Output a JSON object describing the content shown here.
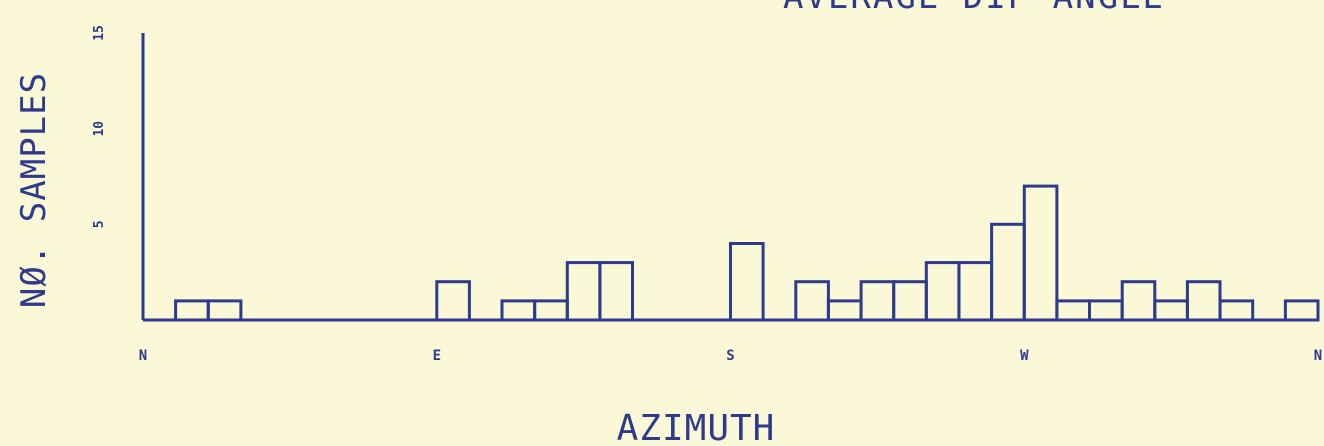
{
  "chart_data": {
    "type": "bar",
    "title": "AVERAGE DIP ANGLE",
    "xlabel": "AZIMUTH",
    "ylabel": "NØ. SAMPLES",
    "ylim": [
      0,
      15
    ],
    "yticks": [
      "5",
      "10",
      "15"
    ],
    "xlim": [
      0,
      360
    ],
    "xticks": [
      {
        "value": 0,
        "label": "N"
      },
      {
        "value": 90,
        "label": "E"
      },
      {
        "value": 180,
        "label": "S"
      },
      {
        "value": 270,
        "label": "W"
      },
      {
        "value": 360,
        "label": "N"
      }
    ],
    "bin_width": 10,
    "bins": [
      {
        "start": 0,
        "count": 0
      },
      {
        "start": 10,
        "count": 1
      },
      {
        "start": 20,
        "count": 1
      },
      {
        "start": 30,
        "count": 0
      },
      {
        "start": 40,
        "count": 0
      },
      {
        "start": 50,
        "count": 0
      },
      {
        "start": 60,
        "count": 0
      },
      {
        "start": 70,
        "count": 0
      },
      {
        "start": 80,
        "count": 0
      },
      {
        "start": 90,
        "count": 2
      },
      {
        "start": 100,
        "count": 0
      },
      {
        "start": 110,
        "count": 1
      },
      {
        "start": 120,
        "count": 1
      },
      {
        "start": 130,
        "count": 3
      },
      {
        "start": 140,
        "count": 3
      },
      {
        "start": 150,
        "count": 0
      },
      {
        "start": 160,
        "count": 0
      },
      {
        "start": 170,
        "count": 0
      },
      {
        "start": 180,
        "count": 4
      },
      {
        "start": 190,
        "count": 0
      },
      {
        "start": 200,
        "count": 2
      },
      {
        "start": 210,
        "count": 1
      },
      {
        "start": 220,
        "count": 2
      },
      {
        "start": 230,
        "count": 2
      },
      {
        "start": 240,
        "count": 3
      },
      {
        "start": 250,
        "count": 3
      },
      {
        "start": 260,
        "count": 5
      },
      {
        "start": 270,
        "count": 7
      },
      {
        "start": 280,
        "count": 1
      },
      {
        "start": 290,
        "count": 1
      },
      {
        "start": 300,
        "count": 2
      },
      {
        "start": 310,
        "count": 1
      },
      {
        "start": 320,
        "count": 2
      },
      {
        "start": 330,
        "count": 1
      },
      {
        "start": 340,
        "count": 0
      },
      {
        "start": 350,
        "count": 1
      }
    ],
    "grid": false,
    "color": "#2e3a8c",
    "background": "#fbf8d8"
  }
}
